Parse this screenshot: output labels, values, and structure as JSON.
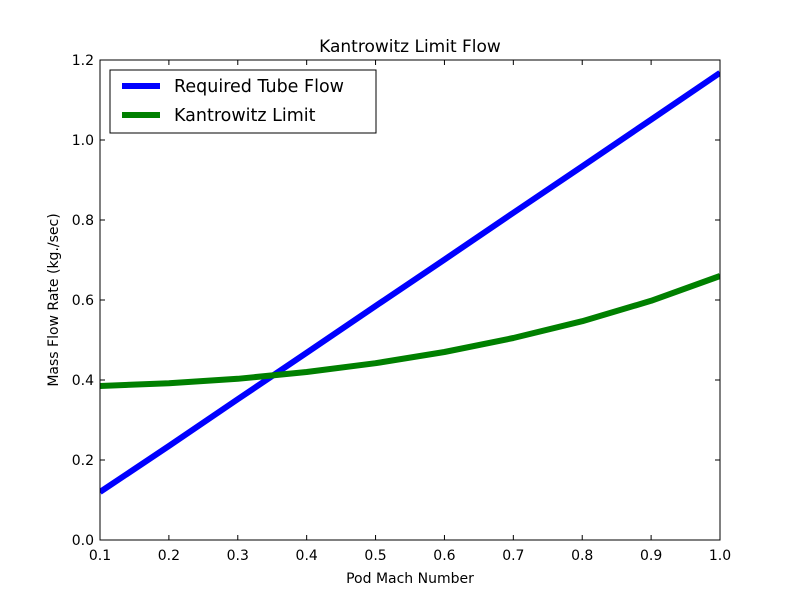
{
  "chart_data": {
    "type": "line",
    "title": "Kantrowitz Limit Flow",
    "xlabel": "Pod Mach Number",
    "ylabel": "Mass Flow Rate (kg./sec)",
    "xlim": [
      0.1,
      1.0
    ],
    "ylim": [
      0.0,
      1.2
    ],
    "xticks": [
      "0.1",
      "0.2",
      "0.3",
      "0.4",
      "0.5",
      "0.6",
      "0.7",
      "0.8",
      "0.9",
      "1.0"
    ],
    "yticks": [
      "0.0",
      "0.2",
      "0.4",
      "0.6",
      "0.8",
      "1.0",
      "1.2"
    ],
    "grid": false,
    "legend_position": "top-left",
    "x": [
      0.1,
      0.2,
      0.3,
      0.4,
      0.5,
      0.6,
      0.7,
      0.8,
      0.9,
      1.0
    ],
    "series": [
      {
        "name": "Required Tube Flow",
        "color": "#0000ff",
        "values": [
          0.12,
          0.235,
          0.352,
          0.468,
          0.585,
          0.701,
          0.818,
          0.934,
          1.051,
          1.168
        ]
      },
      {
        "name": "Kantrowitz Limit",
        "color": "#008000",
        "values": [
          0.385,
          0.392,
          0.403,
          0.42,
          0.442,
          0.47,
          0.505,
          0.547,
          0.598,
          0.66
        ]
      }
    ]
  }
}
